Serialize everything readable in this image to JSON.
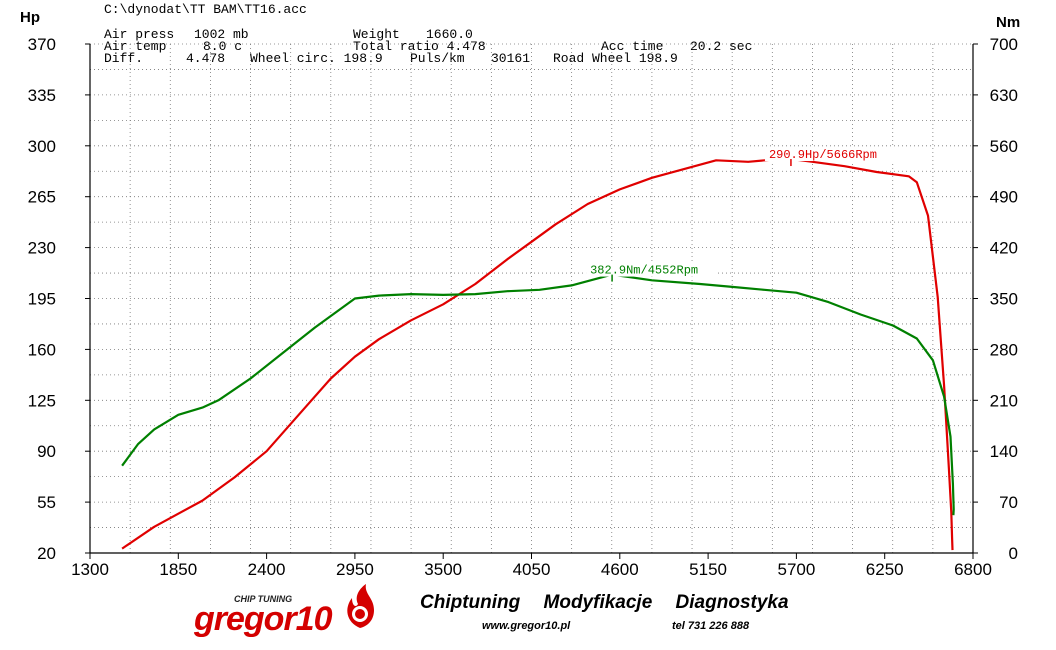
{
  "header": {
    "file": "C:\\dynodat\\TT BAM\\TT16.acc",
    "air_press_label": "Air press",
    "air_press_value": "1002 mb",
    "air_temp_label": "Air temp",
    "air_temp_value": "8.0 c",
    "weight_label": "Weight",
    "weight_value": "1660.0",
    "total_ratio": "Total ratio 4.478",
    "acc_time_label": "Acc time",
    "acc_time_value": "20.2 sec",
    "diff_label": "Diff.",
    "diff_value": "4.478",
    "wheel_circ": "Wheel circ. 198.9",
    "puls_label": "Puls/km",
    "puls_value": "30161",
    "road_wheel": "Road Wheel 198.9"
  },
  "chart_data": {
    "type": "line",
    "left_axis_title": "Hp",
    "right_axis_title": "Nm",
    "x_ticks": [
      "1300",
      "1850",
      "2400",
      "2950",
      "3500",
      "4050",
      "4600",
      "5150",
      "5700",
      "6250",
      "6800"
    ],
    "left_ticks": [
      "370",
      "335",
      "300",
      "265",
      "230",
      "195",
      "160",
      "125",
      "90",
      "55",
      "20"
    ],
    "right_ticks": [
      "700",
      "630",
      "560",
      "490",
      "420",
      "350",
      "280",
      "210",
      "140",
      "70",
      "0"
    ],
    "xlim": [
      1300,
      6800
    ],
    "ylim_left": [
      20,
      370
    ],
    "ylim_right": [
      0,
      700
    ],
    "grid": true,
    "series": [
      {
        "name": "Hp",
        "axis": "left",
        "color": "#e00000",
        "x": [
          1500,
          1700,
          1850,
          2000,
          2200,
          2400,
          2600,
          2800,
          2950,
          3100,
          3300,
          3500,
          3700,
          3900,
          4050,
          4200,
          4400,
          4600,
          4800,
          5000,
          5200,
          5400,
          5600,
          5666,
          5800,
          6000,
          6200,
          6400,
          6450,
          6520,
          6580,
          6620,
          6650,
          6665,
          6670,
          6672
        ],
        "y": [
          23,
          38,
          47,
          56,
          72,
          90,
          115,
          140,
          155,
          167,
          180,
          191,
          205,
          222,
          234,
          246,
          260,
          270,
          278,
          284,
          290,
          289,
          291,
          290.9,
          289,
          286,
          282,
          279,
          275,
          252,
          196,
          135,
          78,
          48,
          30,
          22
        ]
      },
      {
        "name": "Nm",
        "axis": "right",
        "color": "#008000",
        "x": [
          1500,
          1600,
          1700,
          1850,
          2000,
          2100,
          2300,
          2500,
          2700,
          2950,
          3100,
          3300,
          3500,
          3700,
          3900,
          4100,
          4300,
          4552,
          4800,
          5100,
          5300,
          5500,
          5700,
          5900,
          6100,
          6300,
          6450,
          6550,
          6620,
          6660,
          6675,
          6680,
          6678
        ],
        "y": [
          120,
          150,
          170,
          190,
          200,
          210,
          240,
          275,
          310,
          350,
          354,
          356,
          355,
          356,
          360,
          362,
          368,
          382.9,
          375,
          370,
          366,
          362,
          358,
          345,
          328,
          313,
          295,
          265,
          215,
          160,
          95,
          60,
          52
        ]
      }
    ],
    "annotations": [
      {
        "text": "290.9Hp/5666Rpm",
        "series": "Hp",
        "x": 5666,
        "y": 290.9,
        "color": "#e00000"
      },
      {
        "text": "382.9Nm/4552Rpm",
        "series": "Nm",
        "x": 4552,
        "y": 382.9,
        "color": "#008000"
      }
    ]
  },
  "footer": {
    "tagline": "Chiptuning Modyfikacje Diagnostyka",
    "website": "www.gregor10.pl",
    "phone": "tel 731 226 888",
    "logo_text": "gregor10",
    "logo_subtext": "CHIP TUNING"
  }
}
